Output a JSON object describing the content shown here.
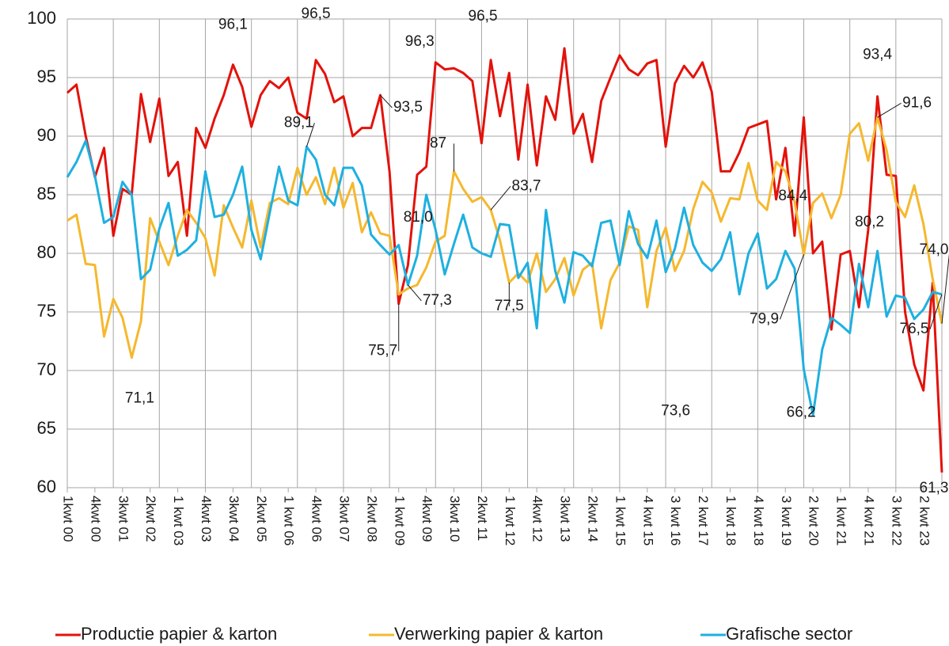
{
  "chart_data": {
    "type": "line",
    "categories": [
      "1kwt 00",
      null,
      null,
      "4kwt 00",
      null,
      null,
      "3kwt 01",
      null,
      null,
      "2kwt 02",
      null,
      null,
      "1 kwt 03",
      null,
      null,
      "4kwt 03",
      null,
      null,
      "3kwt 04",
      null,
      null,
      "2kwt 05",
      null,
      null,
      "1 kwt 06",
      null,
      null,
      "4kwt 06",
      null,
      null,
      "3kwt 07",
      null,
      null,
      "2kwt 08",
      null,
      null,
      "1 kwt 09",
      null,
      null,
      "4kwt 09",
      null,
      null,
      "3kwt 10",
      null,
      null,
      "2kwt 11",
      null,
      null,
      "1 kwt 12",
      null,
      null,
      "4kwt 12",
      null,
      null,
      "3kwt 13",
      null,
      null,
      "2kwt 14",
      null,
      null,
      "1 kwt 15",
      null,
      null,
      "4 kwt 15",
      null,
      null,
      "3 kwt 16",
      null,
      null,
      "2 kwt 17",
      null,
      null,
      "1 kwt 18",
      null,
      null,
      "4 kwt 18",
      null,
      null,
      "3 kwt 19",
      null,
      null,
      "2 kwt 20",
      null,
      null,
      "1 kwt 21",
      null,
      null,
      "4 kwt 21",
      null,
      null,
      "3 kwt 22",
      null,
      null,
      "2 kwt 23",
      null,
      null
    ],
    "series": [
      {
        "name": "Productie papier & karton",
        "color": "#e3120b",
        "values": [
          93.7,
          94.4,
          90,
          86.5,
          89,
          81.5,
          85.5,
          85,
          93.6,
          89.5,
          93.2,
          86.6,
          87.8,
          81.5,
          90.7,
          89,
          91.5,
          93.5,
          96.1,
          94.2,
          90.8,
          93.5,
          94.7,
          94.1,
          95,
          92,
          91.5,
          96.5,
          95.3,
          92.9,
          93.4,
          90,
          90.7,
          90.7,
          93.5,
          87,
          75.7,
          79,
          86.7,
          87.4,
          96.3,
          95.7,
          95.8,
          95.4,
          94.7,
          89.4,
          96.5,
          91.7,
          95.4,
          88,
          94.4,
          87.5,
          93.4,
          91.4,
          97.5,
          90.2,
          91.9,
          87.8,
          93,
          95,
          96.9,
          95.7,
          95.2,
          96.2,
          96.5,
          89.1,
          94.5,
          96,
          95,
          96.3,
          93.8,
          87,
          87,
          88.6,
          90.7,
          91,
          91.3,
          84.6,
          89,
          81.5,
          91.6,
          80,
          81,
          73.5,
          79.9,
          80.2,
          75.4,
          82,
          93.4,
          86.7,
          86.6,
          75,
          70.5,
          68.3,
          77.5,
          61.3
        ],
        "value_labels": [
          null,
          null,
          null,
          null,
          null,
          null,
          null,
          null,
          null,
          null,
          null,
          null,
          null,
          null,
          null,
          null,
          null,
          null,
          "96,1",
          null,
          null,
          null,
          null,
          null,
          null,
          null,
          null,
          "96,5",
          null,
          null,
          null,
          null,
          null,
          null,
          "93,5",
          null,
          "75,7",
          null,
          null,
          null,
          "96,3",
          null,
          null,
          null,
          null,
          null,
          "96,5",
          null,
          null,
          null,
          null,
          null,
          null,
          null,
          null,
          null,
          null,
          null,
          null,
          null,
          null,
          null,
          null,
          null,
          null,
          null,
          null,
          null,
          null,
          null,
          null,
          null,
          null,
          null,
          null,
          null,
          null,
          null,
          null,
          null,
          null,
          null,
          null,
          null,
          null,
          null,
          null,
          null,
          "93,4",
          null,
          null,
          null,
          null,
          null,
          null,
          "61,3"
        ]
      },
      {
        "name": "Verwerking papier & karton",
        "color": "#f5b82e",
        "values": [
          82.8,
          83.3,
          79.1,
          79,
          72.9,
          76.1,
          74.5,
          71.1,
          74.2,
          83,
          81,
          79,
          81.5,
          83.7,
          82.6,
          81.3,
          78.1,
          84.1,
          82.2,
          80.5,
          84.5,
          80.5,
          84.3,
          84.7,
          84.2,
          87.3,
          85,
          86.5,
          84.2,
          87.3,
          83.9,
          86,
          81.8,
          83.5,
          81.7,
          81.5,
          76.5,
          77,
          77.3,
          78.8,
          81,
          81.5,
          87,
          85.5,
          84.4,
          84.8,
          83.7,
          81.1,
          77.5,
          78.3,
          77.5,
          80,
          76.7,
          77.8,
          79.6,
          76.4,
          78.6,
          79.2,
          73.6,
          77.7,
          79.2,
          82.3,
          82,
          75.4,
          80.2,
          82.2,
          78.5,
          80.2,
          83.8,
          86.1,
          85.2,
          82.7,
          84.7,
          84.6,
          87.7,
          84.5,
          83.7,
          87.8,
          87,
          84.4,
          79.9,
          84.3,
          85.1,
          83,
          85,
          90.2,
          91.1,
          87.9,
          91.6,
          88.8,
          84.4,
          83.1,
          85.8,
          82.5,
          77.8,
          74
        ],
        "value_labels": [
          null,
          null,
          null,
          null,
          null,
          null,
          null,
          "71,1",
          null,
          null,
          null,
          null,
          null,
          null,
          null,
          null,
          null,
          null,
          null,
          null,
          null,
          null,
          null,
          null,
          null,
          null,
          null,
          null,
          null,
          null,
          null,
          null,
          null,
          null,
          null,
          null,
          null,
          null,
          null,
          null,
          "81,0",
          null,
          "87",
          null,
          null,
          null,
          "83,7",
          null,
          "77,5",
          null,
          null,
          null,
          null,
          null,
          null,
          null,
          null,
          null,
          "73,6",
          null,
          null,
          null,
          null,
          null,
          null,
          null,
          null,
          null,
          null,
          null,
          null,
          null,
          null,
          null,
          null,
          null,
          null,
          null,
          null,
          "84,4",
          "79,9",
          null,
          null,
          null,
          null,
          null,
          null,
          null,
          "91,6",
          null,
          null,
          null,
          null,
          null,
          null,
          "74,0"
        ]
      },
      {
        "name": "Grafische sector",
        "color": "#1eb0e0",
        "values": [
          86.5,
          87.8,
          89.6,
          86.6,
          82.6,
          83.1,
          86.1,
          85,
          77.8,
          78.6,
          82.1,
          84.3,
          79.8,
          80.3,
          81.1,
          87,
          83.1,
          83.3,
          85,
          87.4,
          82,
          79.5,
          83.5,
          87.4,
          84.5,
          84.1,
          89.1,
          88,
          85,
          84.1,
          87.3,
          87.3,
          85.8,
          81.6,
          80.7,
          79.9,
          80.7,
          77.3,
          79.8,
          85,
          82,
          78.2,
          80.8,
          83.3,
          80.5,
          80,
          79.7,
          82.5,
          82.4,
          77.9,
          79.2,
          73.6,
          83.7,
          78.5,
          75.8,
          80.1,
          79.8,
          78.9,
          82.6,
          82.8,
          79,
          83.6,
          80.8,
          79.6,
          82.8,
          78.4,
          80.4,
          83.9,
          80.7,
          79.2,
          78.5,
          79.5,
          81.8,
          76.5,
          80,
          81.7,
          77,
          77.8,
          80.2,
          78.7,
          70.1,
          66.2,
          71.8,
          74.5,
          73.9,
          73.2,
          79.1,
          75.4,
          80.2,
          74.6,
          76.4,
          76.2,
          74.4,
          75.2,
          76.7,
          76.5
        ],
        "value_labels": [
          null,
          null,
          null,
          null,
          null,
          null,
          null,
          null,
          null,
          null,
          null,
          null,
          null,
          null,
          null,
          null,
          null,
          null,
          null,
          null,
          null,
          null,
          null,
          null,
          null,
          null,
          "89,1",
          null,
          null,
          null,
          null,
          null,
          null,
          null,
          null,
          null,
          null,
          "77,3",
          null,
          null,
          null,
          null,
          null,
          null,
          null,
          null,
          null,
          null,
          null,
          null,
          null,
          null,
          null,
          null,
          null,
          null,
          null,
          null,
          null,
          null,
          null,
          null,
          null,
          null,
          null,
          null,
          null,
          null,
          null,
          null,
          null,
          null,
          null,
          null,
          null,
          null,
          null,
          null,
          null,
          null,
          null,
          "66,2",
          null,
          null,
          null,
          null,
          null,
          null,
          "80,2",
          null,
          null,
          null,
          null,
          null,
          null,
          "76,5"
        ]
      }
    ],
    "ylim": [
      60,
      100
    ],
    "yticks": [
      60,
      65,
      70,
      75,
      80,
      85,
      90,
      95,
      100
    ],
    "grid": true,
    "legend": "bottom"
  }
}
